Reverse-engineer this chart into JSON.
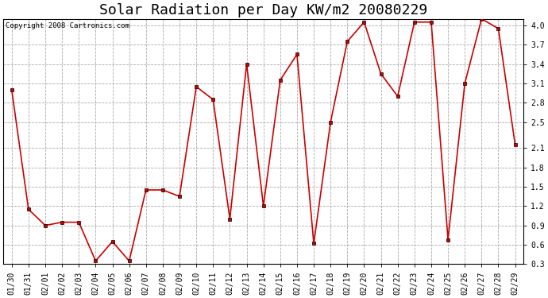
{
  "title": "Solar Radiation per Day KW/m2 20080229",
  "copyright_text": "Copyright 2008 Cartronics.com",
  "dates": [
    "01/30",
    "01/31",
    "02/01",
    "02/02",
    "02/03",
    "02/04",
    "02/05",
    "02/06",
    "02/07",
    "02/08",
    "02/09",
    "02/10",
    "02/11",
    "02/12",
    "02/13",
    "02/14",
    "02/15",
    "02/16",
    "02/17",
    "02/18",
    "02/19",
    "02/20",
    "02/21",
    "02/22",
    "02/23",
    "02/24",
    "02/25",
    "02/26",
    "02/27",
    "02/28",
    "02/29"
  ],
  "values": [
    3.0,
    1.15,
    0.9,
    0.95,
    0.95,
    0.35,
    0.65,
    0.35,
    1.45,
    1.45,
    1.35,
    3.05,
    2.85,
    1.0,
    3.4,
    1.2,
    3.15,
    3.55,
    0.62,
    2.5,
    3.75,
    4.05,
    3.25,
    2.9,
    4.05,
    4.05,
    0.68,
    3.1,
    4.1,
    3.95,
    2.15
  ],
  "line_color": "#cc0000",
  "marker": "s",
  "marker_color": "#000000",
  "marker_size": 2.5,
  "bg_color": "#ffffff",
  "plot_bg_color": "#ffffff",
  "grid_color": "#aaaaaa",
  "grid_style": "--",
  "ylim": [
    0.3,
    4.1
  ],
  "yticks": [
    0.3,
    0.6,
    0.9,
    1.2,
    1.5,
    1.8,
    2.1,
    2.5,
    2.8,
    3.1,
    3.4,
    3.7,
    4.0
  ],
  "title_fontsize": 13,
  "tick_fontsize": 7,
  "copyright_fontsize": 6.5
}
